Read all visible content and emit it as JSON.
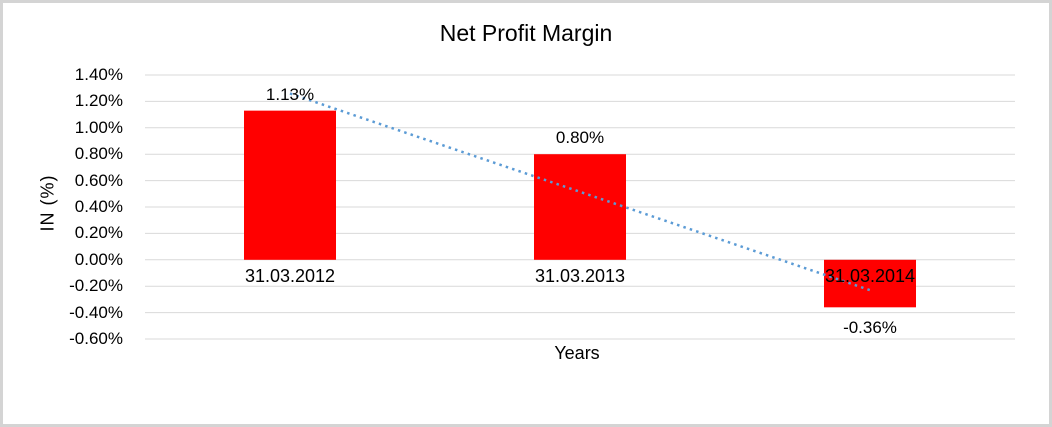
{
  "window": {
    "background": "#ffffff",
    "border_color": "#d4d4d4"
  },
  "chart_data": {
    "type": "bar",
    "title": "Net Profit Margin",
    "categories": [
      "31.03.2012",
      "31.03.2013",
      "31.03.2014"
    ],
    "values": [
      1.13,
      0.8,
      -0.36
    ],
    "data_labels": [
      "1.13%",
      "0.80%",
      "-0.36%"
    ],
    "xlabel": "Years",
    "ylabel": "IN (%)",
    "ylim": [
      -0.6,
      1.4
    ],
    "ytick_step": 0.2,
    "ytick_labels": [
      "1.40%",
      "1.20%",
      "1.00%",
      "0.80%",
      "0.60%",
      "0.40%",
      "0.20%",
      "0.00%",
      "-0.20%",
      "-0.40%",
      "-0.60%"
    ],
    "grid": true,
    "legend_position": "none",
    "colors": {
      "bar": "#ff0000",
      "trendline": "#5b9bd5",
      "gridline": "#d9d9d9",
      "text": "#000000"
    },
    "trendline": {
      "type": "linear",
      "style": "dotted",
      "start_value": 1.26,
      "end_value": -0.23
    }
  }
}
